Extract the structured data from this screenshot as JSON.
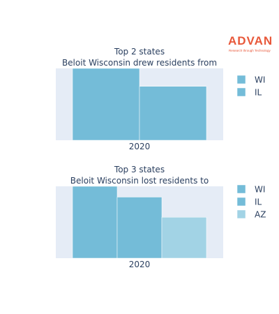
{
  "logo": {
    "wordmark": "ADVAN",
    "tagline": "Research through Technology",
    "color": "#e8583a"
  },
  "chart_data": [
    {
      "type": "bar",
      "title": "Top 2 states",
      "subtitle": "Beloit Wisconsin drew residents from",
      "categories": [
        "2020"
      ],
      "series": [
        {
          "name": "WI",
          "values": [
            100
          ],
          "color": "#74bcd8"
        },
        {
          "name": "IL",
          "values": [
            75
          ],
          "color": "#74bcd8"
        }
      ],
      "ylim": [
        0,
        100
      ],
      "grid": false,
      "legend": "right"
    },
    {
      "type": "bar",
      "title": "Top 3 states",
      "subtitle": "Beloit Wisconsin lost residents to",
      "categories": [
        "2020"
      ],
      "series": [
        {
          "name": "WI",
          "values": [
            100
          ],
          "color": "#74bcd8"
        },
        {
          "name": "IL",
          "values": [
            85
          ],
          "color": "#74bcd8"
        },
        {
          "name": "AZ",
          "values": [
            57
          ],
          "color": "#a2d3e5"
        }
      ],
      "ylim": [
        0,
        100
      ],
      "grid": false,
      "legend": "right"
    }
  ]
}
